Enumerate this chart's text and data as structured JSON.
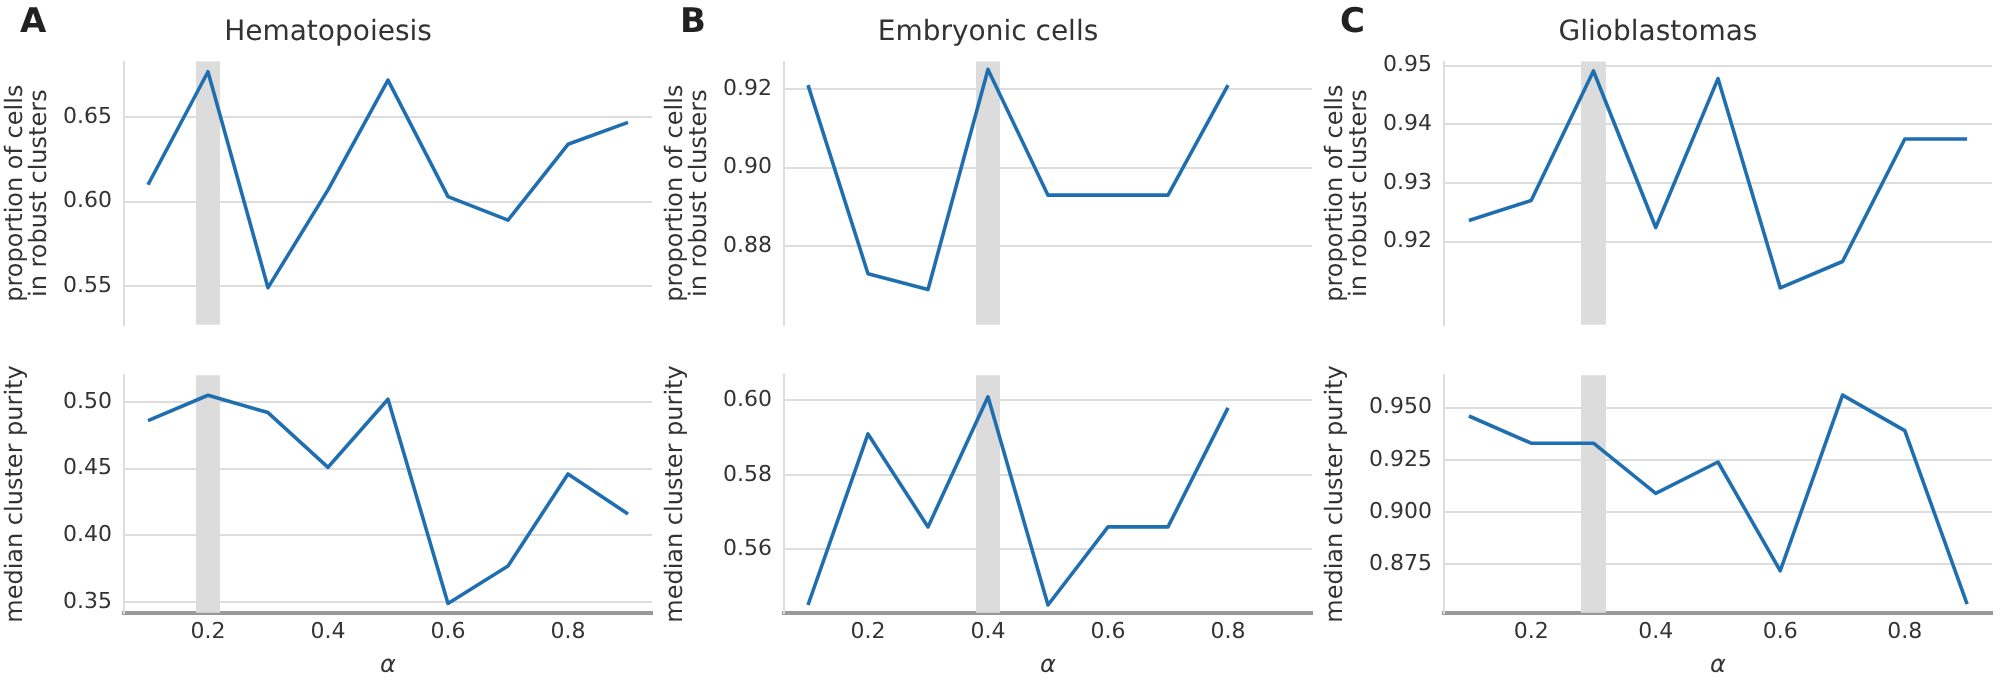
{
  "chart_data": [
    {
      "type": "line",
      "title": "Hematopoiesis",
      "annotations": [
        "A"
      ],
      "ylabel": "proportion of cells\nin robust clusters",
      "x": [
        0.1,
        0.2,
        0.3,
        0.4,
        0.5,
        0.6,
        0.7,
        0.8,
        0.9
      ],
      "values": [
        0.61,
        0.677,
        0.549,
        0.607,
        0.672,
        0.603,
        0.589,
        0.634,
        0.647
      ],
      "color": "#1f6fb0",
      "xlim": [
        0.06,
        0.94
      ],
      "ylim": [
        0.527,
        0.683
      ],
      "yticks": [
        0.55,
        {
          "value": 0.6,
          "label": "0.60"
        },
        0.65
      ],
      "tick_labels": "y",
      "grid": "y",
      "bands": [
        {
          "axis": "x",
          "from": 0.18,
          "to": 0.22,
          "color": "#dcdcdc"
        }
      ]
    },
    {
      "type": "line",
      "title": "Embryonic cells",
      "annotations": [
        "B"
      ],
      "ylabel": "proportion of cells\nin robust clusters",
      "x": [
        0.1,
        0.2,
        0.3,
        0.4,
        0.5,
        0.6,
        0.7,
        0.8
      ],
      "values": [
        0.921,
        0.873,
        0.869,
        0.925,
        0.893,
        0.893,
        0.893,
        0.921
      ],
      "color": "#1f6fb0",
      "xlim": [
        0.06,
        0.94
      ],
      "ylim": [
        0.86,
        0.927
      ],
      "yticks": [
        0.88,
        {
          "value": 0.9,
          "label": "0.90"
        },
        0.92
      ],
      "tick_labels": "y",
      "grid": "y",
      "bands": [
        {
          "axis": "x",
          "from": 0.38,
          "to": 0.42,
          "color": "#dcdcdc"
        }
      ]
    },
    {
      "type": "line",
      "title": "Glioblastomas",
      "annotations": [
        "C"
      ],
      "ylabel": "proportion of cells\nin robust clusters",
      "x": [
        0.1,
        0.2,
        0.3,
        0.4,
        0.5,
        0.6,
        0.7,
        0.8,
        0.9
      ],
      "values": [
        0.9236,
        0.927,
        0.9491,
        0.9224,
        0.9478,
        0.9121,
        0.9166,
        0.9375,
        0.9375
      ],
      "color": "#1f6fb0",
      "xlim": [
        0.06,
        0.94
      ],
      "ylim": [
        0.9058,
        0.9507
      ],
      "yticks": [
        0.92,
        0.93,
        0.94,
        0.95
      ],
      "tick_labels": "y",
      "grid": "y",
      "bands": [
        {
          "axis": "x",
          "from": 0.28,
          "to": 0.32,
          "color": "#dcdcdc"
        }
      ]
    },
    {
      "type": "line",
      "xlabel": "α",
      "ylabel": "median cluster purity",
      "x": [
        0.1,
        0.2,
        0.3,
        0.4,
        0.5,
        0.6,
        0.7,
        0.8,
        0.9
      ],
      "values": [
        0.486,
        0.505,
        0.492,
        0.451,
        0.502,
        0.349,
        0.377,
        0.446,
        0.416
      ],
      "color": "#1f6fb0",
      "xlim": [
        0.06,
        0.94
      ],
      "xticks": [
        0.2,
        0.4,
        0.6,
        0.8
      ],
      "ylim": [
        0.342,
        0.52
      ],
      "yticks": [
        0.35,
        {
          "value": 0.4,
          "label": "0.40"
        },
        0.45,
        {
          "value": 0.5,
          "label": "0.50"
        }
      ],
      "grid": "y",
      "bands": [
        {
          "axis": "x",
          "from": 0.18,
          "to": 0.22,
          "color": "#dcdcdc"
        }
      ]
    },
    {
      "type": "line",
      "xlabel": "α",
      "ylabel": "median cluster purity",
      "x": [
        0.1,
        0.2,
        0.3,
        0.4,
        0.5,
        0.6,
        0.7,
        0.8
      ],
      "values": [
        0.545,
        0.591,
        0.566,
        0.601,
        0.545,
        0.566,
        0.566,
        0.598
      ],
      "color": "#1f6fb0",
      "xlim": [
        0.06,
        0.94
      ],
      "xticks": [
        0.2,
        0.4,
        0.6,
        0.8
      ],
      "ylim": [
        0.5429,
        0.6068
      ],
      "yticks": [
        0.56,
        0.58,
        {
          "value": 0.6,
          "label": "0.60"
        }
      ],
      "grid": "y",
      "bands": [
        {
          "axis": "x",
          "from": 0.38,
          "to": 0.42,
          "color": "#dcdcdc"
        }
      ]
    },
    {
      "type": "line",
      "xlabel": "α",
      "ylabel": "median cluster purity",
      "x": [
        0.1,
        0.2,
        0.3,
        0.4,
        0.5,
        0.6,
        0.7,
        0.8,
        0.9
      ],
      "values": [
        0.946,
        0.933,
        0.933,
        0.909,
        0.924,
        0.872,
        0.956,
        0.939,
        0.856
      ],
      "color": "#1f6fb0",
      "xlim": [
        0.06,
        0.94
      ],
      "xticks": [
        0.2,
        0.4,
        0.6,
        0.8
      ],
      "ylim": [
        0.8519,
        0.9655
      ],
      "yticks": [
        0.875,
        {
          "value": 0.9,
          "label": "0.900"
        },
        0.925,
        {
          "value": 0.95,
          "label": "0.950"
        }
      ],
      "grid": "y",
      "bands": [
        {
          "axis": "x",
          "from": 0.28,
          "to": 0.32,
          "color": "#dcdcdc"
        }
      ]
    }
  ]
}
